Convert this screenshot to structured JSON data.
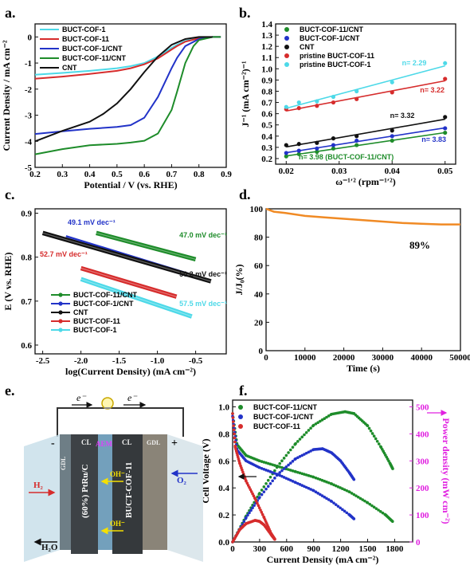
{
  "panels": {
    "a": {
      "label": "a."
    },
    "b": {
      "label": "b."
    },
    "c": {
      "label": "c."
    },
    "d": {
      "label": "d."
    },
    "e": {
      "label": "e."
    },
    "f": {
      "label": "f."
    }
  },
  "chart_data": [
    {
      "id": "a",
      "type": "line",
      "xlabel": "Potential / V (vs. RHE)",
      "ylabel": "Current Density / mA cm⁻²",
      "xlim": [
        0.2,
        0.9
      ],
      "ylim": [
        -5,
        0.5
      ],
      "xticks": [
        "0.2",
        "0.3",
        "0.4",
        "0.5",
        "0.6",
        "0.7",
        "0.8",
        "0.9"
      ],
      "yticks": [
        "0",
        "-1",
        "-2",
        "-3",
        "-4",
        "-5"
      ],
      "legend_position": "top-left",
      "series": [
        {
          "name": "BUCT-COF-1",
          "color": "#4dd9e8",
          "x": [
            0.2,
            0.3,
            0.4,
            0.5,
            0.55,
            0.6,
            0.65,
            0.7,
            0.72,
            0.75,
            0.8,
            0.85,
            0.88
          ],
          "y": [
            -1.45,
            -1.38,
            -1.3,
            -1.2,
            -1.12,
            -1.0,
            -0.75,
            -0.42,
            -0.3,
            -0.15,
            -0.05,
            0,
            0
          ]
        },
        {
          "name": "BUCT-COF-11",
          "color": "#d62c2c",
          "x": [
            0.2,
            0.3,
            0.4,
            0.5,
            0.55,
            0.6,
            0.65,
            0.7,
            0.72,
            0.75,
            0.8,
            0.85,
            0.88
          ],
          "y": [
            -1.6,
            -1.52,
            -1.42,
            -1.3,
            -1.2,
            -1.05,
            -0.82,
            -0.48,
            -0.35,
            -0.18,
            -0.05,
            0,
            0
          ]
        },
        {
          "name": "BUCT-COF-1/CNT",
          "color": "#2233c8",
          "x": [
            0.2,
            0.3,
            0.4,
            0.5,
            0.55,
            0.6,
            0.65,
            0.7,
            0.72,
            0.75,
            0.8,
            0.85,
            0.88
          ],
          "y": [
            -3.72,
            -3.62,
            -3.52,
            -3.45,
            -3.38,
            -3.1,
            -2.3,
            -1.2,
            -0.8,
            -0.35,
            -0.08,
            0,
            0
          ]
        },
        {
          "name": "BUCT-COF-11/CNT",
          "color": "#1e8c2a",
          "x": [
            0.2,
            0.3,
            0.4,
            0.5,
            0.55,
            0.6,
            0.65,
            0.7,
            0.72,
            0.75,
            0.78,
            0.8,
            0.85,
            0.88
          ],
          "y": [
            -4.5,
            -4.3,
            -4.15,
            -4.1,
            -4.05,
            -3.98,
            -3.7,
            -2.8,
            -2.1,
            -1.0,
            -0.35,
            -0.12,
            0,
            0
          ]
        },
        {
          "name": "CNT",
          "color": "#111111",
          "x": [
            0.2,
            0.3,
            0.4,
            0.45,
            0.5,
            0.55,
            0.6,
            0.65,
            0.7,
            0.75,
            0.8,
            0.85
          ],
          "y": [
            -4.0,
            -3.6,
            -3.25,
            -2.95,
            -2.55,
            -2.0,
            -1.35,
            -0.75,
            -0.3,
            -0.08,
            0,
            0
          ]
        }
      ]
    },
    {
      "id": "b",
      "type": "scatter",
      "xlabel": "ω⁻¹′² (rpm⁻¹′²)",
      "ylabel": "J⁻¹ (mA cm⁻²)⁻¹",
      "xlim": [
        0.018,
        0.052
      ],
      "ylim": [
        0.15,
        1.4
      ],
      "xticks": [
        "0.02",
        "0.03",
        "0.04",
        "0.05"
      ],
      "yticks": [
        "0.2",
        "0.3",
        "0.4",
        "0.5",
        "0.6",
        "0.7",
        "0.8",
        "0.9",
        "1.0",
        "1.1",
        "1.2",
        "1.3",
        "1.4"
      ],
      "legend_position": "top-left",
      "x": [
        0.02,
        0.0224,
        0.0258,
        0.0289,
        0.0333,
        0.04,
        0.05
      ],
      "series": [
        {
          "name": "BUCT-COF-11/CNT",
          "color": "#1e8c2a",
          "y": [
            0.22,
            0.24,
            0.26,
            0.29,
            0.32,
            0.36,
            0.43
          ],
          "annotation": "n= 3.98 (BUCT-COF-11/CNT)"
        },
        {
          "name": "BUCT-COF-1/CNT",
          "color": "#2233c8",
          "y": [
            0.25,
            0.27,
            0.29,
            0.32,
            0.36,
            0.4,
            0.47
          ],
          "annotation": "n= 3.83"
        },
        {
          "name": "CNT",
          "color": "#111111",
          "y": [
            0.32,
            0.33,
            0.34,
            0.38,
            0.4,
            0.45,
            0.57
          ],
          "annotation": "n= 3.32"
        },
        {
          "name": "pristine BUCT-COF-11",
          "color": "#d62c2c",
          "y": [
            0.64,
            0.65,
            0.67,
            0.7,
            0.73,
            0.79,
            0.91
          ],
          "annotation": "n= 3.22"
        },
        {
          "name": "pristine BUCT-COF-1",
          "color": "#4dd9e8",
          "y": [
            0.66,
            0.7,
            0.71,
            0.75,
            0.8,
            0.88,
            1.05
          ],
          "annotation": "n= 2.29"
        }
      ]
    },
    {
      "id": "c",
      "type": "line",
      "xlabel": "log(Current Density) (mA cm⁻²)",
      "ylabel": "E (V vs. RHE)",
      "xlim": [
        -2.6,
        -0.1
      ],
      "ylim": [
        0.58,
        0.91
      ],
      "xticks": [
        "-2.5",
        "-2.0",
        "-1.5",
        "-1.0",
        "-0.5"
      ],
      "yticks": [
        "0.6",
        "0.7",
        "0.8",
        "0.9"
      ],
      "legend_position": "bottom-left",
      "series": [
        {
          "name": "BUCT-COF-11/CNT",
          "color": "#1e8c2a",
          "x": [
            -1.8,
            -0.5
          ],
          "y": [
            0.855,
            0.795
          ],
          "annotation": "47.0 mV dec⁻¹"
        },
        {
          "name": "BUCT-COF-1/CNT",
          "color": "#2233c8",
          "x": [
            -2.2,
            -0.6
          ],
          "y": [
            0.845,
            0.76
          ],
          "annotation": "49.1 mV dec⁻¹"
        },
        {
          "name": "CNT",
          "color": "#111111",
          "x": [
            -2.5,
            -0.3
          ],
          "y": [
            0.855,
            0.745
          ],
          "annotation": "50.2 mV dec⁻¹"
        },
        {
          "name": "BUCT-COF-11",
          "color": "#d62c2c",
          "x": [
            -2.0,
            -0.75
          ],
          "y": [
            0.775,
            0.71
          ],
          "annotation": "52.7 mV dec⁻¹"
        },
        {
          "name": "BUCT-COF-1",
          "color": "#4dd9e8",
          "x": [
            -2.0,
            -0.55
          ],
          "y": [
            0.75,
            0.665
          ],
          "annotation": "57.5 mV dec⁻¹"
        }
      ]
    },
    {
      "id": "d",
      "type": "line",
      "xlabel": "Time (s)",
      "ylabel": "J/J₀(%)",
      "xlim": [
        0,
        50000
      ],
      "ylim": [
        0,
        100
      ],
      "xticks": [
        "0",
        "10000",
        "20000",
        "30000",
        "40000",
        "50000"
      ],
      "yticks": [
        "0",
        "20",
        "40",
        "60",
        "80",
        "100"
      ],
      "annotation": "89%",
      "series": [
        {
          "name": "",
          "color": "#f08a24",
          "x": [
            0,
            2000,
            5000,
            10000,
            15000,
            20000,
            25000,
            30000,
            35000,
            40000,
            45000,
            50000
          ],
          "y": [
            100,
            98,
            97,
            95,
            94,
            93,
            92,
            91,
            90,
            89.5,
            89,
            89
          ]
        }
      ]
    },
    {
      "id": "f",
      "type": "scatter",
      "xlabel": "Current Density (mA cm⁻²)",
      "ylabel": "Cell Voltage (V)",
      "ylabel_right": "Power density (mW cm⁻²)",
      "xlim": [
        0,
        2000
      ],
      "ylim": [
        0,
        1.05
      ],
      "ylim_right": [
        0,
        525
      ],
      "xticks": [
        "0",
        "300",
        "600",
        "900",
        "1200",
        "1500",
        "1800"
      ],
      "yticks": [
        "0.0",
        "0.2",
        "0.4",
        "0.6",
        "0.8",
        "1.0"
      ],
      "yticks_right": [
        "0",
        "100",
        "200",
        "300",
        "400",
        "500"
      ],
      "legend_position": "top-left",
      "series": [
        {
          "name": "BUCT-COF-11/CNT",
          "color": "#1e8c2a",
          "voltage": {
            "x": [
              0,
              50,
              150,
              300,
              500,
              700,
              900,
              1100,
              1300,
              1500,
              1700,
              1780
            ],
            "y": [
              0.95,
              0.72,
              0.64,
              0.6,
              0.56,
              0.52,
              0.48,
              0.43,
              0.37,
              0.29,
              0.2,
              0.15
            ]
          },
          "power": {
            "x": [
              0,
              150,
              300,
              500,
              700,
              900,
              1100,
              1250,
              1350,
              1500,
              1650,
              1750,
              1780
            ],
            "y": [
              0,
              96,
              180,
              280,
              364,
              432,
              473,
              482,
              475,
              430,
              350,
              290,
              270
            ]
          }
        },
        {
          "name": "BUCT-COF-1/CNT",
          "color": "#2233c8",
          "voltage": {
            "x": [
              0,
              50,
              150,
              300,
              500,
              700,
              900,
              1100,
              1300,
              1350
            ],
            "y": [
              0.93,
              0.68,
              0.6,
              0.55,
              0.5,
              0.44,
              0.38,
              0.3,
              0.2,
              0.17
            ]
          },
          "power": {
            "x": [
              0,
              150,
              300,
              500,
              700,
              900,
              1000,
              1100,
              1200,
              1300,
              1350
            ],
            "y": [
              0,
              90,
              165,
              250,
              308,
              342,
              345,
              330,
              300,
              255,
              230
            ]
          }
        },
        {
          "name": "BUCT-COF-11",
          "color": "#d62c2c",
          "voltage": {
            "x": [
              0,
              30,
              80,
              150,
              250,
              350,
              430,
              470
            ],
            "y": [
              0.95,
              0.7,
              0.58,
              0.45,
              0.32,
              0.18,
              0.06,
              0.02
            ]
          },
          "power": {
            "x": [
              0,
              80,
              150,
              250,
              300,
              350,
              430,
              470
            ],
            "y": [
              0,
              46,
              68,
              80,
              76,
              63,
              26,
              9
            ]
          }
        }
      ]
    }
  ],
  "diagram_e": {
    "electron_left": "e⁻",
    "electron_right": "e⁻",
    "minus": "-",
    "plus": "+",
    "gdl_left": "GDL",
    "gdl_right": "GDL",
    "cl_left": "CL",
    "cl_right": "CL",
    "aem": "AEM",
    "anode_text": "(60%) PtRu/C",
    "cathode_text": "BUCT-COF-11",
    "oh1": "OH⁻",
    "oh2": "OH⁻",
    "h2": "H₂",
    "o2": "O₂",
    "h2o": "H₂O"
  }
}
